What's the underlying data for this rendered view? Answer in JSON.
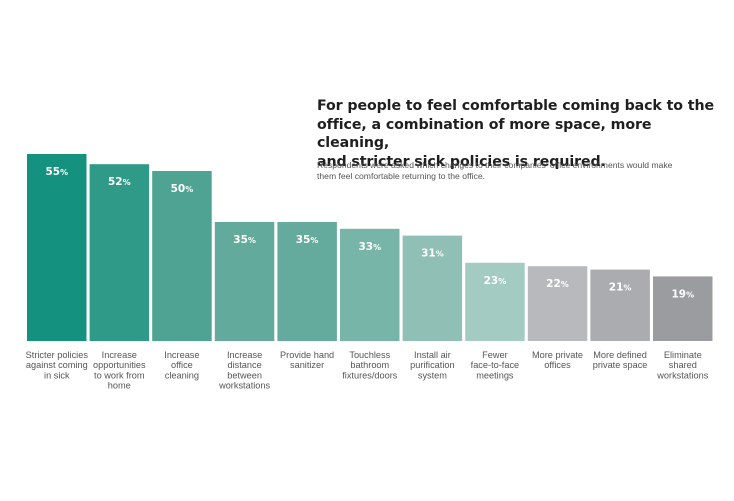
{
  "header": {
    "title_lines": [
      "For people to feel comfortable coming back to the",
      "office, a combination of more space, more cleaning,",
      "and stricter sick policies is required."
    ],
    "subtitle_lines": [
      "Respondents were asked which changes to their companies' office environments would make",
      "them feel comfortable returning to the office."
    ]
  },
  "chart_data": {
    "type": "bar",
    "title": "For people to feel comfortable coming back to the office, a combination of more space, more cleaning, and stricter sick policies is required.",
    "subtitle": "Respondents were asked which changes to their companies' office environments would make them feel comfortable returning to the office.",
    "xlabel": "",
    "ylabel": "",
    "ylim": [
      0,
      55
    ],
    "grid": false,
    "legend": "none",
    "unit": "%",
    "categories": [
      [
        "Stricter policies",
        "against coming",
        "in sick"
      ],
      [
        "Increase",
        "opportunities",
        "to work from",
        "home"
      ],
      [
        "Increase",
        "office",
        "cleaning"
      ],
      [
        "Increase",
        "distance",
        "between",
        "workstations"
      ],
      [
        "Provide hand",
        "sanitizer"
      ],
      [
        "Touchless",
        "bathroom",
        "fixtures/doors"
      ],
      [
        "Install air",
        "purification",
        "system"
      ],
      [
        "Fewer",
        "face-to-face",
        "meetings"
      ],
      [
        "More private",
        "offices"
      ],
      [
        "More defined",
        "private space"
      ],
      [
        "Eliminate",
        "shared",
        "workstations"
      ]
    ],
    "values": [
      55,
      52,
      50,
      35,
      35,
      33,
      31,
      23,
      22,
      21,
      19
    ],
    "colors": [
      "#14927f",
      "#2f9a88",
      "#4fa393",
      "#62aa9c",
      "#64aa9d",
      "#78b5a9",
      "#8fbfb5",
      "#a4cbc2",
      "#b8b9bc",
      "#abacaf",
      "#9b9c9f"
    ]
  }
}
